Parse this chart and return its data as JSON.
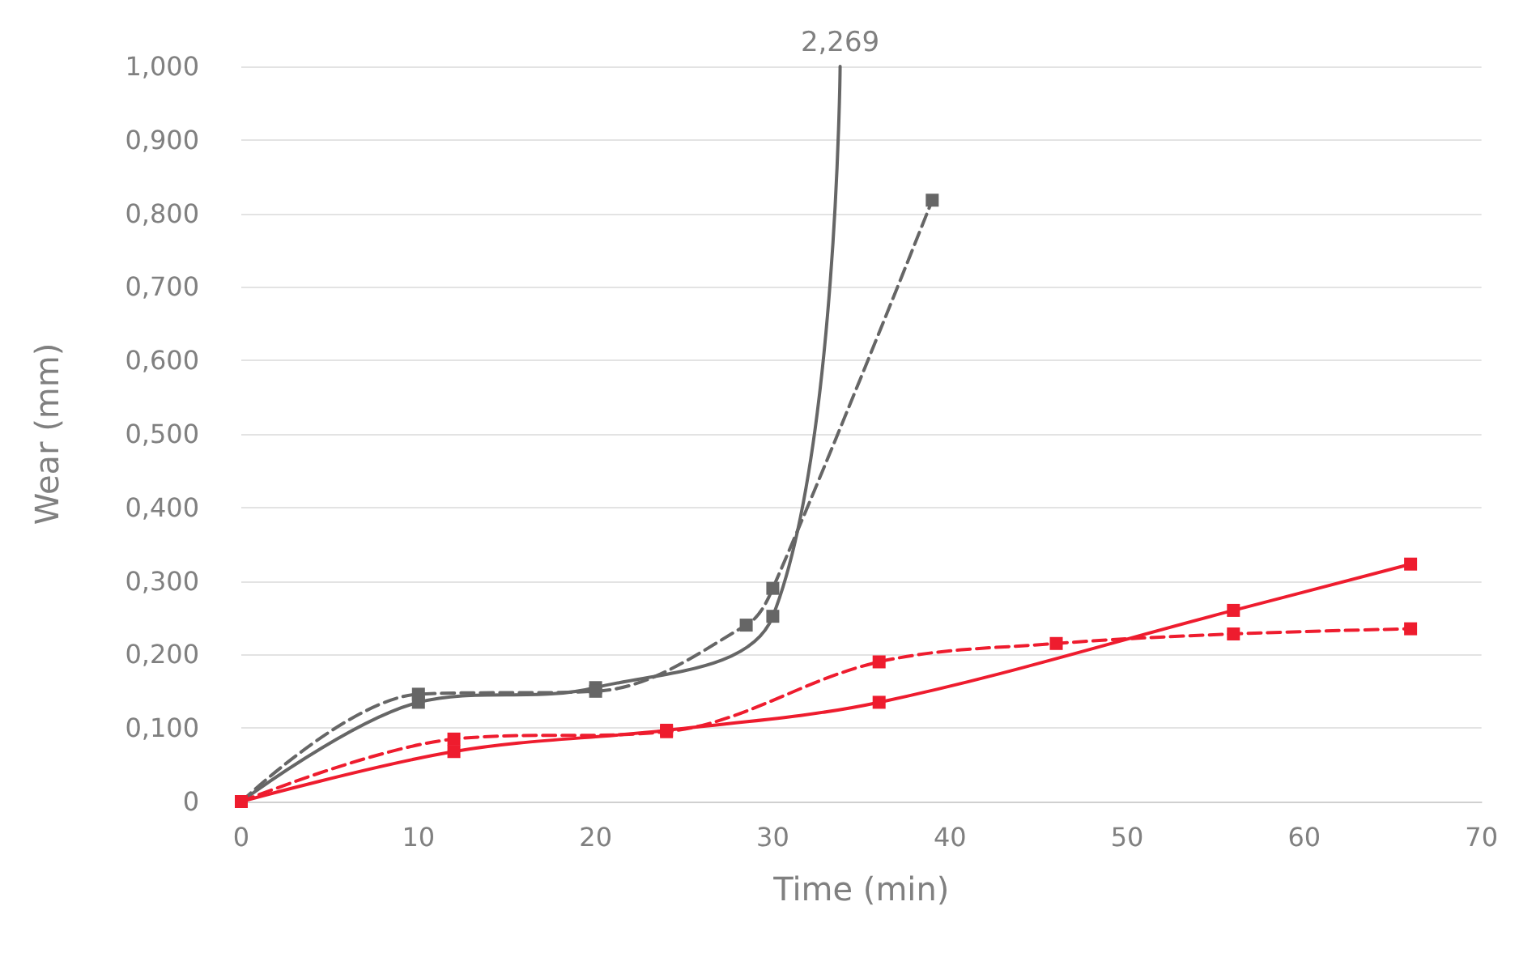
{
  "chart_data": {
    "type": "line",
    "xlabel": "Time (min)",
    "ylabel": "Wear (mm)",
    "xlim": [
      0,
      70
    ],
    "xticks": [
      0,
      10,
      20,
      30,
      40,
      50,
      60,
      70
    ],
    "ylim": [
      0,
      1
    ],
    "yticks": [
      {
        "value": 0,
        "label": "0"
      },
      {
        "value": 0.1,
        "label": "0,100"
      },
      {
        "value": 0.2,
        "label": "0,200"
      },
      {
        "value": 0.3,
        "label": "0,300"
      },
      {
        "value": 0.4,
        "label": "0,400"
      },
      {
        "value": 0.5,
        "label": "0,500"
      },
      {
        "value": 0.6,
        "label": "0,600"
      },
      {
        "value": 0.7,
        "label": "0,700"
      },
      {
        "value": 0.8,
        "label": "0,800"
      },
      {
        "value": 0.9,
        "label": "0,900"
      },
      {
        "value": 1,
        "label": "1,000"
      }
    ],
    "grid": "y",
    "marker": "square",
    "series": [
      {
        "color": "#666666",
        "line_style": "solid",
        "x": [
          0,
          10,
          20,
          30,
          33.8
        ],
        "values": [
          0,
          0.135,
          0.155,
          0.252,
          1
        ]
      },
      {
        "color": "#666666",
        "line_style": "dashed",
        "x": [
          0,
          10,
          20,
          28.5,
          30,
          39
        ],
        "values": [
          0,
          0.146,
          0.15,
          0.24,
          0.29,
          0.818
        ]
      },
      {
        "color": "#ee1c2e",
        "line_style": "solid",
        "x": [
          0,
          12,
          24,
          36,
          56,
          66
        ],
        "values": [
          0,
          0.068,
          0.097,
          0.135,
          0.26,
          0.323
        ]
      },
      {
        "color": "#ee1c2e",
        "line_style": "dashed",
        "x": [
          0,
          12,
          24,
          36,
          46,
          56,
          66
        ],
        "values": [
          0,
          0.085,
          0.095,
          0.19,
          0.215,
          0.228,
          0.235
        ]
      }
    ],
    "annotations": [
      {
        "text": "2,269",
        "x": 33.8,
        "y": 1
      }
    ]
  }
}
